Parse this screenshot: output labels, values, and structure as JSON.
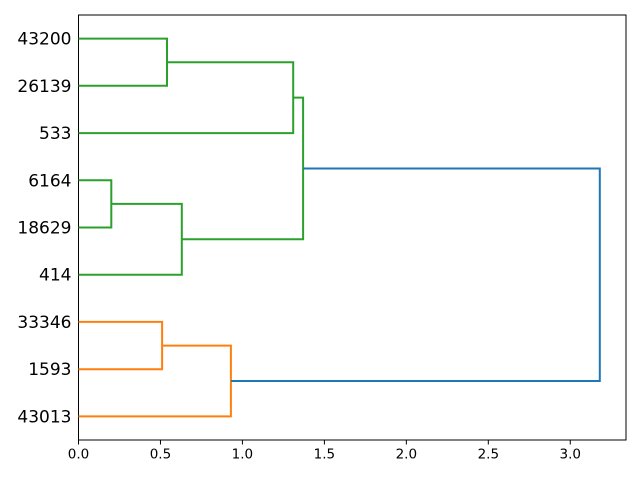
{
  "figure": {
    "background": "#ffffff",
    "axis_color": "#000000",
    "tick_label_color": "#000000"
  },
  "chart_data": {
    "type": "dendrogram",
    "orientation": "right",
    "title": "",
    "xlabel": "",
    "ylabel": "",
    "grid": false,
    "legend": false,
    "leaves": [
      "43200",
      "26139",
      "533",
      "6164",
      "18629",
      "414",
      "33346",
      "1593",
      "43013"
    ],
    "leaf_positions": [
      85,
      75,
      65,
      55,
      45,
      35,
      25,
      15,
      5
    ],
    "merges": [
      {
        "id": "A",
        "children": [
          "43200",
          "26139"
        ],
        "distance": 0.54,
        "color": "#2ca02c"
      },
      {
        "id": "B",
        "children": [
          "A",
          "533"
        ],
        "distance": 1.31,
        "color": "#2ca02c"
      },
      {
        "id": "C",
        "children": [
          "6164",
          "18629"
        ],
        "distance": 0.2,
        "color": "#2ca02c"
      },
      {
        "id": "D",
        "children": [
          "C",
          "414"
        ],
        "distance": 0.63,
        "color": "#2ca02c"
      },
      {
        "id": "E",
        "children": [
          "B",
          "D"
        ],
        "distance": 1.37,
        "color": "#2ca02c"
      },
      {
        "id": "F",
        "children": [
          "33346",
          "1593"
        ],
        "distance": 0.51,
        "color": "#ff7f0e"
      },
      {
        "id": "G",
        "children": [
          "F",
          "43013"
        ],
        "distance": 0.93,
        "color": "#ff7f0e"
      },
      {
        "id": "H",
        "children": [
          "E",
          "G"
        ],
        "distance": 3.18,
        "color": "#1f77b4"
      }
    ],
    "x_ticks": [
      "0.0",
      "0.5",
      "1.0",
      "1.5",
      "2.0",
      "2.5",
      "3.0"
    ],
    "x_tick_values": [
      0,
      0.5,
      1,
      1.5,
      2,
      2.5,
      3
    ],
    "xlim": [
      0,
      3.34
    ],
    "ylim": [
      0,
      90
    ],
    "colors": {
      "cluster_upper": "#2ca02c",
      "cluster_lower": "#ff7f0e",
      "root_link": "#1f77b4"
    }
  }
}
